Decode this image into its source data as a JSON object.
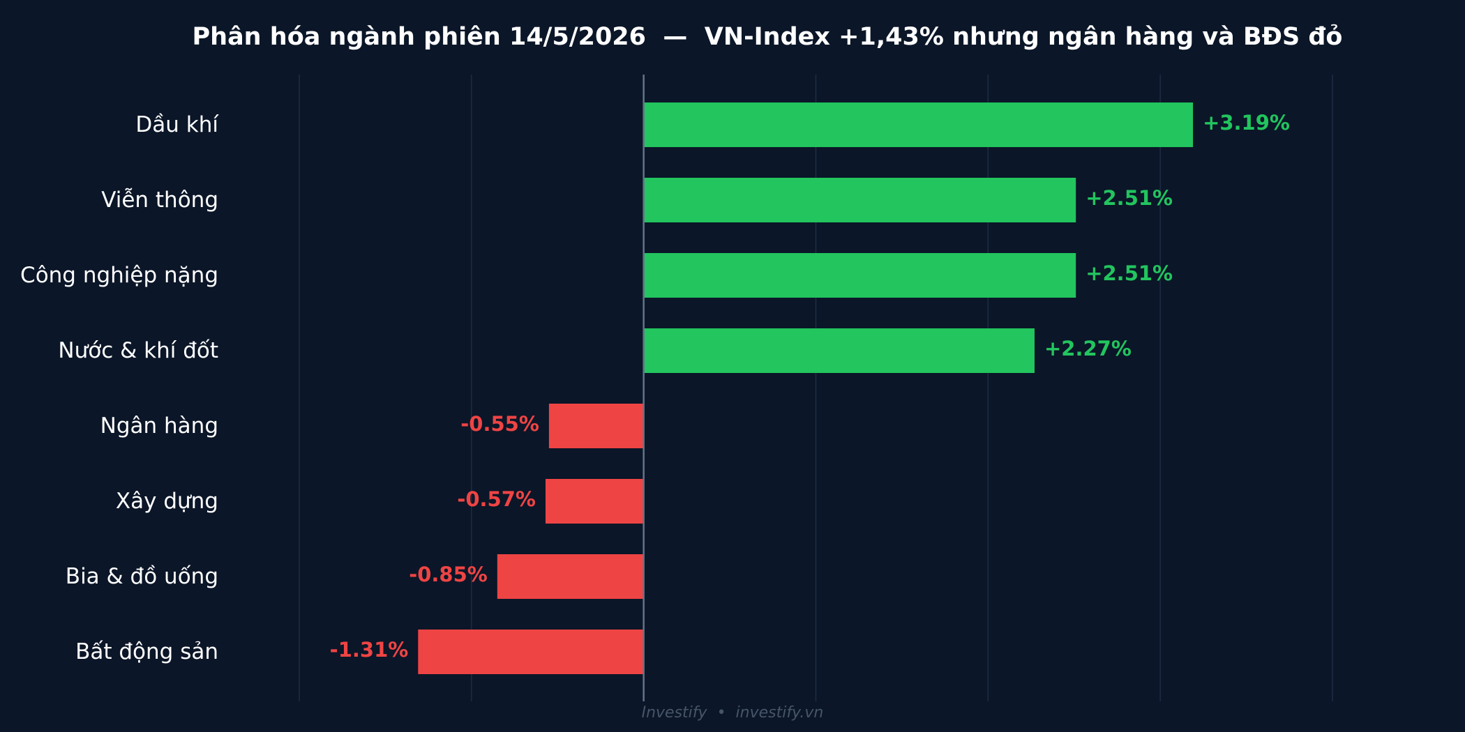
{
  "chart_data": {
    "type": "bar",
    "orientation": "horizontal",
    "title": "Phân hóa ngành phiên 14/5/2026  —  VN-Index +1,43% nhưng ngân hàng và BĐS đỏ",
    "categories": [
      "Dầu khí",
      "Viễn thông",
      "Công nghiệp nặng",
      "Nước & khí đốt",
      "Ngân hàng",
      "Xây dựng",
      "Bia & đồ uống",
      "Bất động sản"
    ],
    "values": [
      3.19,
      2.51,
      2.51,
      2.27,
      -0.55,
      -0.57,
      -0.85,
      -1.31
    ],
    "value_labels": [
      "+3.19%",
      "+2.51%",
      "+2.51%",
      "+2.27%",
      "-0.55%",
      "-0.57%",
      "-0.85%",
      "-1.31%"
    ],
    "xlim": [
      -2,
      4
    ],
    "grid": true,
    "colors": {
      "positive": "#22c55e",
      "negative": "#ef4444",
      "background": "#0b1628",
      "grid": "#1e2d45",
      "zero_line": "#64748b",
      "text": "#ffffff"
    }
  },
  "footer": {
    "brand": "Investify",
    "separator": "•",
    "site": "investify.vn"
  }
}
